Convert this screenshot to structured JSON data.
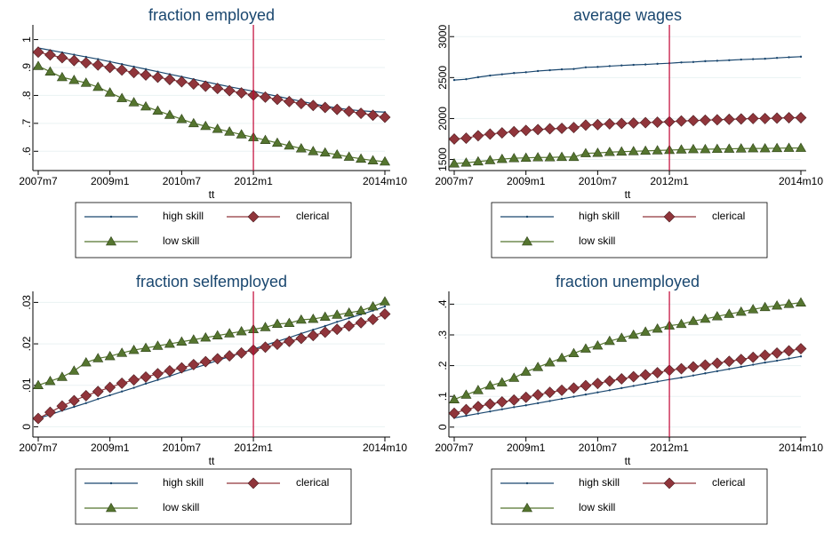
{
  "chart_data": [
    {
      "type": "line",
      "title": "fraction employed",
      "xlabel": "tt",
      "x": [
        "2007m7",
        "2007m10",
        "2008m1",
        "2008m4",
        "2008m7",
        "2008m10",
        "2009m1",
        "2009m4",
        "2009m7",
        "2009m10",
        "2010m1",
        "2010m4",
        "2010m7",
        "2010m10",
        "2011m1",
        "2011m4",
        "2011m7",
        "2011m10",
        "2012m1",
        "2012m4",
        "2012m7",
        "2012m10",
        "2013m1",
        "2013m4",
        "2013m7",
        "2013m10",
        "2014m1",
        "2014m4",
        "2014m7",
        "2014m10"
      ],
      "xticks": [
        "2007m7",
        "2009m1",
        "2010m7",
        "2012m1",
        "2014m10"
      ],
      "ylim": [
        0.55,
        1.04
      ],
      "yticks": [
        {
          "value": 0.6,
          "label": ".6"
        },
        {
          "value": 0.7,
          "label": ".7"
        },
        {
          "value": 0.8,
          "label": ".8"
        },
        {
          "value": 0.9,
          "label": ".9"
        },
        1
      ],
      "grid": true,
      "xline": "2012m1",
      "xline_color": "#c10534",
      "series": [
        {
          "name": "high skill",
          "color": "#1a476f",
          "marker": "dot",
          "values": [
            0.97,
            0.962,
            0.954,
            0.946,
            0.938,
            0.93,
            0.921,
            0.912,
            0.903,
            0.894,
            0.885,
            0.876,
            0.867,
            0.858,
            0.849,
            0.84,
            0.831,
            0.823,
            0.815,
            0.806,
            0.797,
            0.788,
            0.779,
            0.77,
            0.762,
            0.755,
            0.749,
            0.745,
            0.742,
            0.74
          ]
        },
        {
          "name": "clerical",
          "color": "#90353b",
          "marker": "diamond",
          "values": [
            0.955,
            0.945,
            0.935,
            0.925,
            0.917,
            0.909,
            0.9,
            0.891,
            0.882,
            0.873,
            0.865,
            0.857,
            0.849,
            0.841,
            0.833,
            0.825,
            0.817,
            0.809,
            0.801,
            0.794,
            0.786,
            0.778,
            0.771,
            0.764,
            0.757,
            0.75,
            0.743,
            0.736,
            0.729,
            0.722
          ]
        },
        {
          "name": "low skill",
          "color": "#55752f",
          "marker": "triangle",
          "values": [
            0.905,
            0.885,
            0.865,
            0.855,
            0.845,
            0.83,
            0.81,
            0.79,
            0.775,
            0.76,
            0.745,
            0.73,
            0.715,
            0.7,
            0.69,
            0.68,
            0.67,
            0.66,
            0.65,
            0.64,
            0.63,
            0.62,
            0.61,
            0.6,
            0.595,
            0.588,
            0.58,
            0.573,
            0.567,
            0.563
          ]
        }
      ]
    },
    {
      "type": "line",
      "title": "average wages",
      "xlabel": "tt",
      "x": [
        "2007m7",
        "2007m10",
        "2008m1",
        "2008m4",
        "2008m7",
        "2008m10",
        "2009m1",
        "2009m4",
        "2009m7",
        "2009m10",
        "2010m1",
        "2010m4",
        "2010m7",
        "2010m10",
        "2011m1",
        "2011m4",
        "2011m7",
        "2011m10",
        "2012m1",
        "2012m4",
        "2012m7",
        "2012m10",
        "2013m1",
        "2013m4",
        "2013m7",
        "2013m10",
        "2014m1",
        "2014m4",
        "2014m7",
        "2014m10"
      ],
      "xticks": [
        "2007m7",
        "2009m1",
        "2010m7",
        "2012m1",
        "2014m10"
      ],
      "ylim": [
        1430,
        3100
      ],
      "yticks": [
        1500,
        2000,
        2500,
        3000
      ],
      "grid": true,
      "xline": "2012m1",
      "xline_color": "#c10534",
      "series": [
        {
          "name": "high skill",
          "color": "#1a476f",
          "marker": "dot",
          "values": [
            2470,
            2480,
            2505,
            2525,
            2540,
            2555,
            2565,
            2580,
            2590,
            2600,
            2605,
            2625,
            2630,
            2640,
            2648,
            2655,
            2660,
            2668,
            2675,
            2685,
            2690,
            2700,
            2705,
            2712,
            2720,
            2725,
            2730,
            2740,
            2748,
            2755
          ]
        },
        {
          "name": "clerical",
          "color": "#90353b",
          "marker": "diamond",
          "values": [
            1750,
            1760,
            1790,
            1810,
            1825,
            1840,
            1855,
            1865,
            1875,
            1880,
            1890,
            1920,
            1925,
            1935,
            1940,
            1945,
            1950,
            1955,
            1960,
            1970,
            1975,
            1980,
            1985,
            1990,
            1995,
            2000,
            2000,
            2005,
            2010,
            2010
          ]
        },
        {
          "name": "low skill",
          "color": "#55752f",
          "marker": "triangle",
          "values": [
            1450,
            1460,
            1475,
            1490,
            1505,
            1515,
            1520,
            1525,
            1525,
            1530,
            1530,
            1575,
            1580,
            1590,
            1595,
            1600,
            1605,
            1610,
            1615,
            1620,
            1625,
            1625,
            1628,
            1630,
            1633,
            1635,
            1635,
            1638,
            1640,
            1640
          ]
        }
      ]
    },
    {
      "type": "line",
      "title": "fraction selfemployed",
      "xlabel": "tt",
      "x": [
        "2007m7",
        "2007m10",
        "2008m1",
        "2008m4",
        "2008m7",
        "2008m10",
        "2009m1",
        "2009m4",
        "2009m7",
        "2009m10",
        "2010m1",
        "2010m4",
        "2010m7",
        "2010m10",
        "2011m1",
        "2011m4",
        "2011m7",
        "2011m10",
        "2012m1",
        "2012m4",
        "2012m7",
        "2012m10",
        "2013m1",
        "2013m4",
        "2013m7",
        "2013m10",
        "2014m1",
        "2014m4",
        "2014m7",
        "2014m10"
      ],
      "xticks": [
        "2007m7",
        "2009m1",
        "2010m7",
        "2012m1",
        "2014m10"
      ],
      "ylim": [
        -0.0012,
        0.0318
      ],
      "yticks": [
        0,
        {
          "value": 0.01,
          "label": ".01"
        },
        {
          "value": 0.02,
          "label": ".02"
        },
        {
          "value": 0.03,
          "label": ".03"
        }
      ],
      "grid": true,
      "xline": "2012m1",
      "xline_color": "#c10534",
      "series": [
        {
          "name": "high skill",
          "color": "#1a476f",
          "marker": "dot",
          "values": [
            0.002,
            0.0029,
            0.0039,
            0.0048,
            0.0057,
            0.0067,
            0.0076,
            0.0085,
            0.0094,
            0.0104,
            0.0113,
            0.0122,
            0.0132,
            0.0141,
            0.015,
            0.016,
            0.0169,
            0.0178,
            0.0187,
            0.0197,
            0.0206,
            0.0215,
            0.0225,
            0.0234,
            0.0243,
            0.0253,
            0.0262,
            0.0271,
            0.028,
            0.029
          ]
        },
        {
          "name": "clerical",
          "color": "#90353b",
          "marker": "diamond",
          "values": [
            0.002,
            0.0035,
            0.005,
            0.0063,
            0.0075,
            0.0085,
            0.0095,
            0.0105,
            0.0113,
            0.012,
            0.0128,
            0.0135,
            0.0142,
            0.015,
            0.0157,
            0.0164,
            0.0171,
            0.0178,
            0.0185,
            0.0192,
            0.0199,
            0.0206,
            0.0213,
            0.022,
            0.0228,
            0.0235,
            0.0243,
            0.0251,
            0.0259,
            0.0272
          ]
        },
        {
          "name": "low skill",
          "color": "#55752f",
          "marker": "triangle",
          "values": [
            0.01,
            0.011,
            0.012,
            0.0135,
            0.0155,
            0.0165,
            0.017,
            0.0178,
            0.0185,
            0.019,
            0.0195,
            0.02,
            0.0205,
            0.021,
            0.0215,
            0.022,
            0.0225,
            0.023,
            0.0235,
            0.024,
            0.0248,
            0.025,
            0.0258,
            0.026,
            0.0265,
            0.027,
            0.0275,
            0.028,
            0.029,
            0.0302
          ]
        }
      ]
    },
    {
      "type": "line",
      "title": "fraction unemployed",
      "xlabel": "tt",
      "x": [
        "2007m7",
        "2007m10",
        "2008m1",
        "2008m4",
        "2008m7",
        "2008m10",
        "2009m1",
        "2009m4",
        "2009m7",
        "2009m10",
        "2010m1",
        "2010m4",
        "2010m7",
        "2010m10",
        "2011m1",
        "2011m4",
        "2011m7",
        "2011m10",
        "2012m1",
        "2012m4",
        "2012m7",
        "2012m10",
        "2013m1",
        "2013m4",
        "2013m7",
        "2013m10",
        "2014m1",
        "2014m4",
        "2014m7",
        "2014m10"
      ],
      "xticks": [
        "2007m7",
        "2009m1",
        "2010m7",
        "2012m1",
        "2014m10"
      ],
      "ylim": [
        -0.015,
        0.43
      ],
      "yticks": [
        0,
        {
          "value": 0.1,
          "label": ".1"
        },
        {
          "value": 0.2,
          "label": ".2"
        },
        {
          "value": 0.3,
          "label": ".3"
        },
        {
          "value": 0.4,
          "label": ".4"
        }
      ],
      "grid": true,
      "xline": "2012m1",
      "xline_color": "#c10534",
      "series": [
        {
          "name": "high skill",
          "color": "#1a476f",
          "marker": "dot",
          "values": [
            0.03,
            0.037,
            0.044,
            0.051,
            0.058,
            0.065,
            0.071,
            0.078,
            0.085,
            0.092,
            0.099,
            0.106,
            0.113,
            0.12,
            0.127,
            0.134,
            0.141,
            0.148,
            0.155,
            0.161,
            0.168,
            0.175,
            0.182,
            0.189,
            0.196,
            0.203,
            0.21,
            0.216,
            0.223,
            0.23
          ]
        },
        {
          "name": "clerical",
          "color": "#90353b",
          "marker": "diamond",
          "values": [
            0.045,
            0.057,
            0.067,
            0.075,
            0.082,
            0.088,
            0.097,
            0.105,
            0.113,
            0.12,
            0.127,
            0.135,
            0.142,
            0.15,
            0.157,
            0.164,
            0.17,
            0.177,
            0.185,
            0.19,
            0.196,
            0.202,
            0.208,
            0.214,
            0.22,
            0.227,
            0.234,
            0.241,
            0.248,
            0.255
          ]
        },
        {
          "name": "low skill",
          "color": "#55752f",
          "marker": "triangle",
          "values": [
            0.09,
            0.105,
            0.12,
            0.135,
            0.145,
            0.16,
            0.18,
            0.195,
            0.21,
            0.225,
            0.24,
            0.255,
            0.265,
            0.28,
            0.29,
            0.3,
            0.31,
            0.32,
            0.33,
            0.335,
            0.345,
            0.352,
            0.36,
            0.368,
            0.375,
            0.383,
            0.39,
            0.395,
            0.4,
            0.405
          ]
        }
      ]
    }
  ]
}
